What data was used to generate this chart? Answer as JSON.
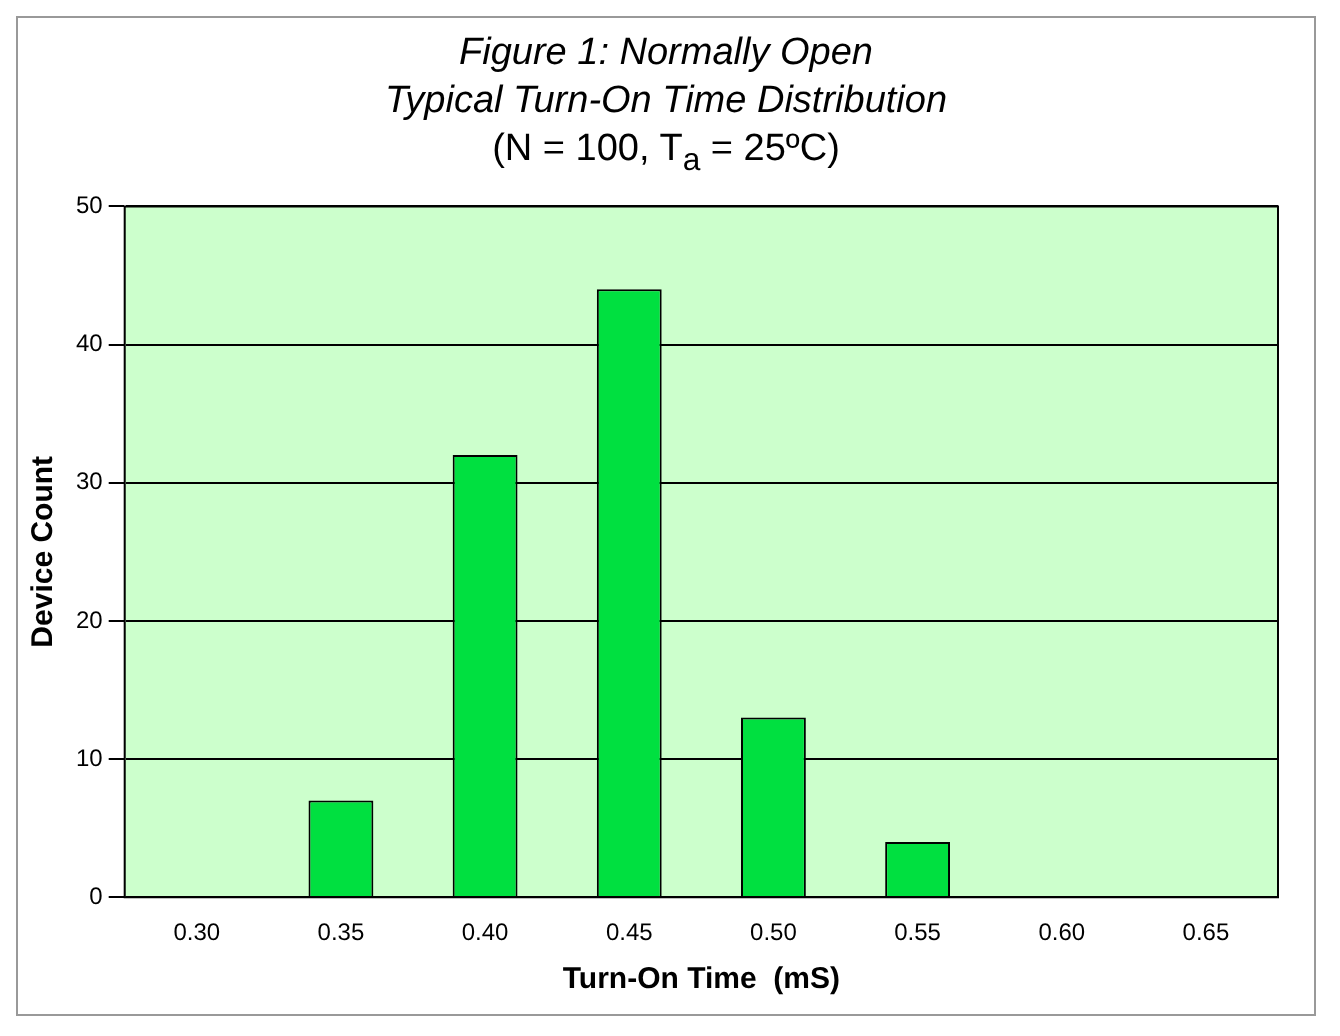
{
  "chart_data": {
    "type": "bar",
    "title": "Figure 1:  Normally Open\nTypical Turn-On Time Distribution",
    "subtitle": "(N = 100, T$_{a}$ = 25ºC)",
    "xlabel": "Turn-On Time  (mS)",
    "ylabel": "Device Count",
    "categories": [
      "0.30",
      "0.35",
      "0.40",
      "0.45",
      "0.50",
      "0.55",
      "0.60",
      "0.65"
    ],
    "values": [
      0,
      7,
      32,
      44,
      13,
      4,
      0,
      0
    ],
    "color": "#00e040",
    "ylim": [
      0,
      50
    ],
    "yticks": [
      0,
      10,
      20,
      30,
      40,
      50
    ],
    "grid": "y",
    "legend": false
  }
}
